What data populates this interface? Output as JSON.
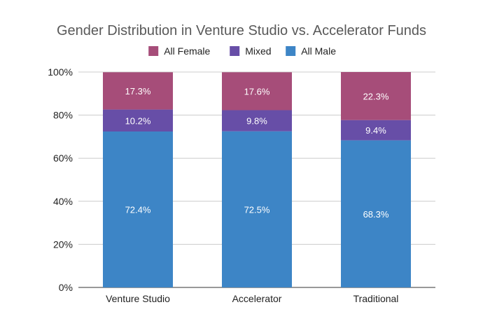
{
  "chart_data": {
    "type": "bar",
    "stacked": true,
    "title": "Gender Distribution in Venture Studio vs. Accelerator Funds",
    "xlabel": "",
    "ylabel": "",
    "categories": [
      "Venture Studio",
      "Accelerator",
      "Traditional"
    ],
    "series": [
      {
        "name": "All Male",
        "color": "#3d85c6",
        "values": [
          72.4,
          72.5,
          68.3
        ],
        "labels": [
          "72.4%",
          "72.5%",
          "68.3%"
        ]
      },
      {
        "name": "Mixed",
        "color": "#674ea7",
        "values": [
          10.2,
          9.8,
          9.4
        ],
        "labels": [
          "10.2%",
          "9.8%",
          "9.4%"
        ]
      },
      {
        "name": "All Female",
        "color": "#a64d79",
        "values": [
          17.3,
          17.6,
          22.3
        ],
        "labels": [
          "17.3%",
          "17.6%",
          "22.3%"
        ]
      }
    ],
    "legend_order": [
      "All Female",
      "Mixed",
      "All Male"
    ],
    "legend_position": "top",
    "ylim": [
      0,
      100
    ],
    "yticks": [
      0,
      20,
      40,
      60,
      80,
      100
    ],
    "ytick_labels": [
      "0%",
      "20%",
      "40%",
      "60%",
      "80%",
      "100%"
    ],
    "grid": true
  }
}
